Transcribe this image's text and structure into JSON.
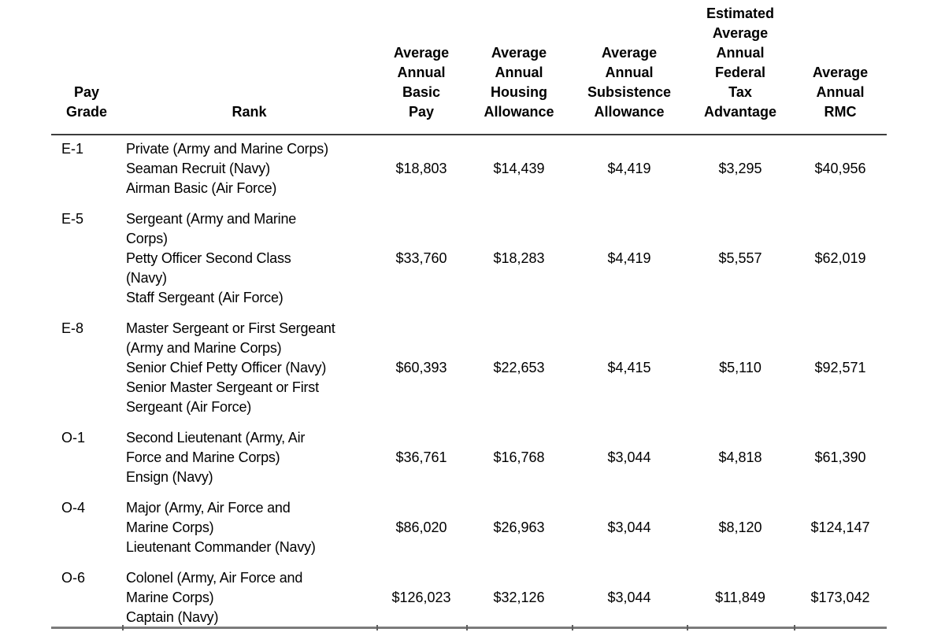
{
  "colors": {
    "background": "#ffffff",
    "text": "#000000",
    "header_rule": "#3c3c3c",
    "bottom_rule": "#7b7b7b"
  },
  "table": {
    "header": {
      "pay_grade": "Pay\nGrade",
      "rank": "Rank",
      "basic_pay": "Average\nAnnual\nBasic\nPay",
      "housing": "Average\nAnnual\nHousing\nAllowance",
      "subsistence": "Average\nAnnual\nSubsistence\nAllowance",
      "tax_advantage": "Estimated\nAverage\nAnnual\nFederal\nTax\nAdvantage",
      "rmc": "Average\nAnnual\nRMC"
    },
    "rows": [
      {
        "pay_grade": "E-1",
        "rank": "Private (Army and Marine Corps)\nSeaman Recruit (Navy)\nAirman Basic (Air Force)",
        "basic_pay": "$18,803",
        "housing": "$14,439",
        "subsistence": "$4,419",
        "tax_advantage": "$3,295",
        "rmc": "$40,956"
      },
      {
        "pay_grade": "E-5",
        "rank": "Sergeant (Army and Marine\nCorps)\nPetty Officer Second Class\n(Navy)\nStaff Sergeant (Air Force)",
        "basic_pay": "$33,760",
        "housing": "$18,283",
        "subsistence": "$4,419",
        "tax_advantage": "$5,557",
        "rmc": "$62,019"
      },
      {
        "pay_grade": "E-8",
        "rank": "Master Sergeant or First Sergeant\n(Army and Marine Corps)\nSenior Chief Petty Officer (Navy)\nSenior Master Sergeant or First\nSergeant (Air Force)",
        "basic_pay": "$60,393",
        "housing": "$22,653",
        "subsistence": "$4,415",
        "tax_advantage": "$5,110",
        "rmc": "$92,571"
      },
      {
        "pay_grade": "O-1",
        "rank": "Second Lieutenant (Army, Air\nForce and Marine Corps)\nEnsign (Navy)",
        "basic_pay": "$36,761",
        "housing": "$16,768",
        "subsistence": "$3,044",
        "tax_advantage": "$4,818",
        "rmc": "$61,390"
      },
      {
        "pay_grade": "O-4",
        "rank": "Major (Army, Air Force and\nMarine Corps)\nLieutenant Commander (Navy)",
        "basic_pay": "$86,020",
        "housing": "$26,963",
        "subsistence": "$3,044",
        "tax_advantage": "$8,120",
        "rmc": "$124,147"
      },
      {
        "pay_grade": "O-6",
        "rank": "Colonel (Army, Air Force and\nMarine Corps)\nCaptain (Navy)",
        "basic_pay": "$126,023",
        "housing": "$32,126",
        "subsistence": "$3,044",
        "tax_advantage": "$11,849",
        "rmc": "$173,042"
      }
    ]
  }
}
